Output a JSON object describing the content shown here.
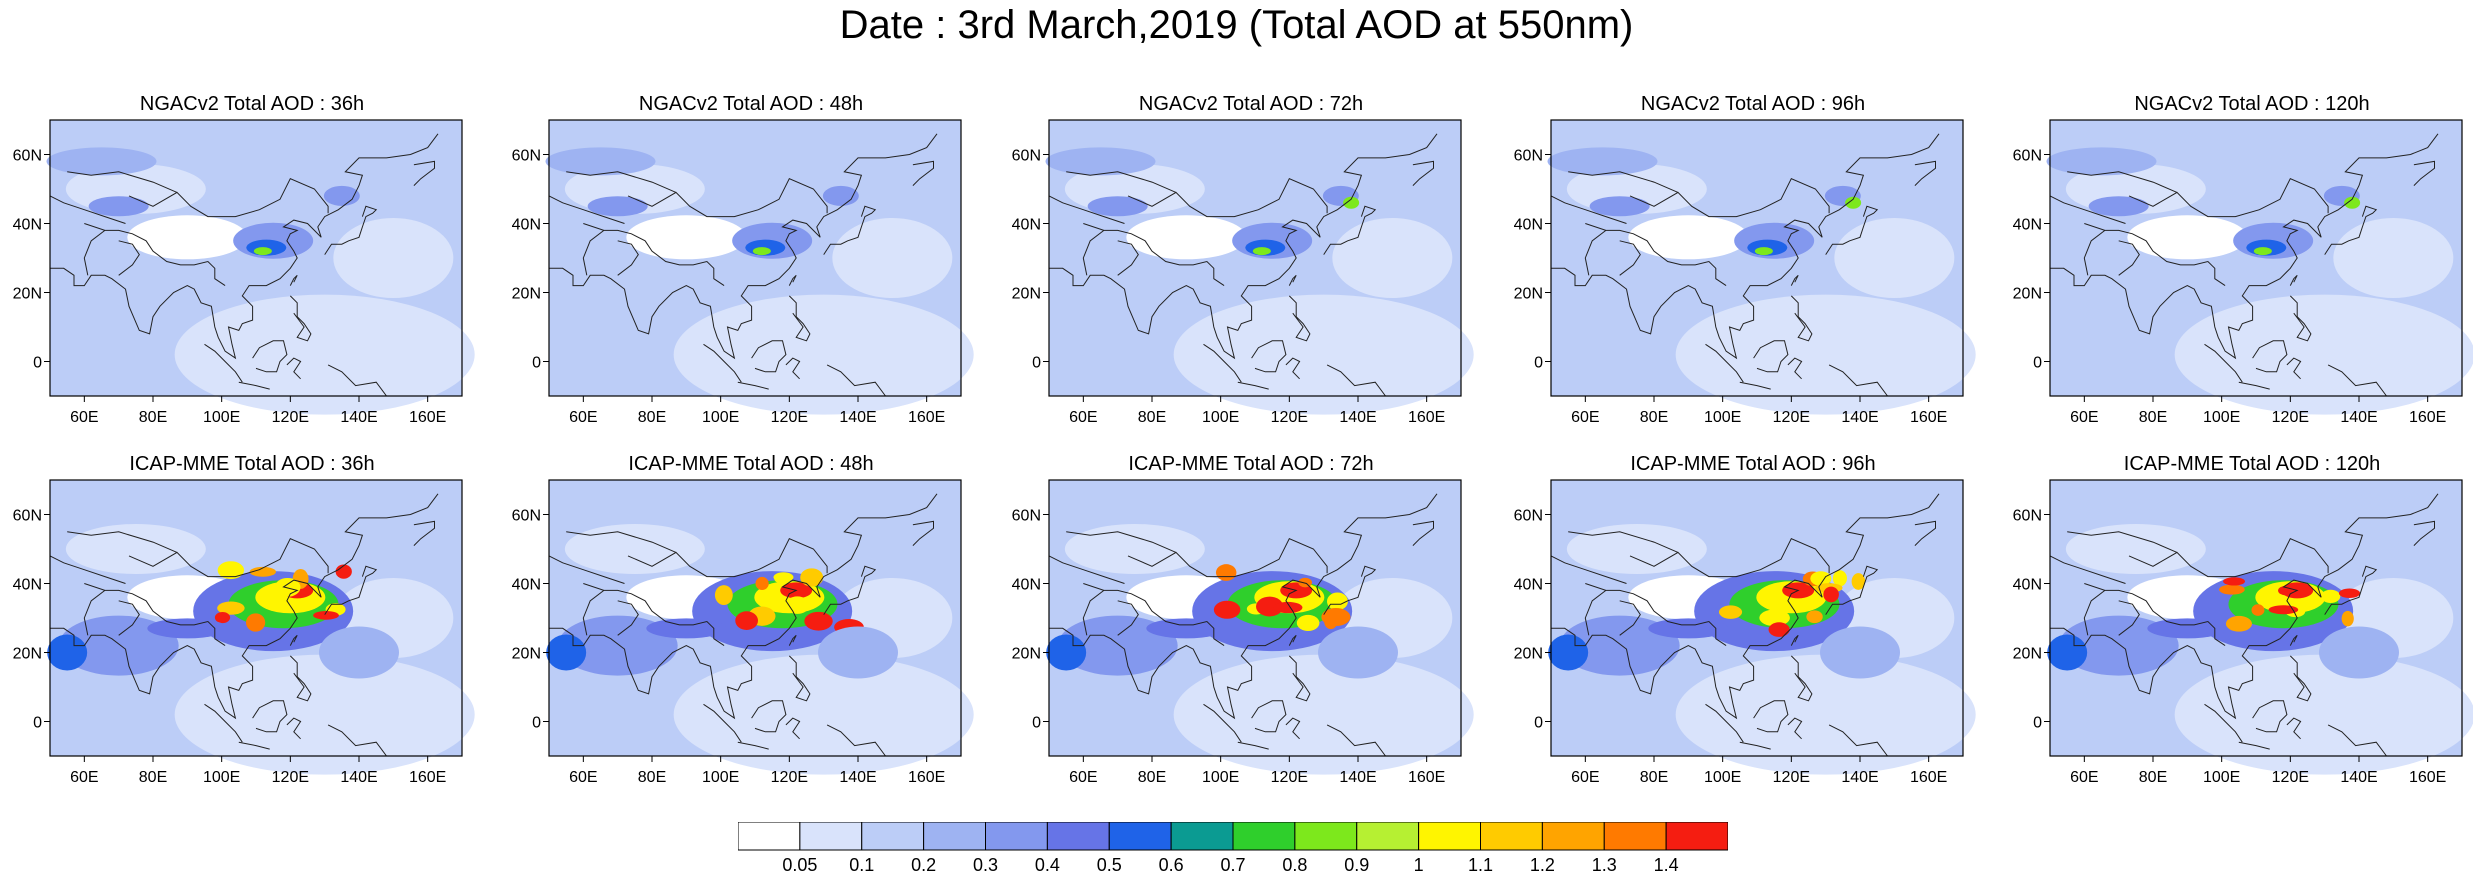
{
  "title": "Date : 3rd March,2019 (Total AOD at 550nm)",
  "panels": [
    {
      "title": "NGACv2 Total AOD : 36h"
    },
    {
      "title": "NGACv2 Total AOD : 48h"
    },
    {
      "title": "NGACv2 Total AOD : 72h"
    },
    {
      "title": "NGACv2 Total AOD : 96h"
    },
    {
      "title": "NGACv2 Total AOD : 120h"
    },
    {
      "title": "ICAP-MME Total AOD : 36h"
    },
    {
      "title": "ICAP-MME Total AOD : 48h"
    },
    {
      "title": "ICAP-MME Total AOD : 72h"
    },
    {
      "title": "ICAP-MME Total AOD : 96h"
    },
    {
      "title": "ICAP-MME Total AOD : 120h"
    }
  ],
  "map": {
    "lon_range": [
      50,
      170
    ],
    "lat_range": [
      -10,
      70
    ],
    "x_ticks": [
      "60E",
      "80E",
      "100E",
      "120E",
      "140E",
      "160E"
    ],
    "x_tick_values": [
      60,
      80,
      100,
      120,
      140,
      160
    ],
    "y_ticks": [
      "0",
      "20N",
      "40N",
      "60N"
    ],
    "y_tick_values": [
      0,
      20,
      40,
      60
    ]
  },
  "colorbar": {
    "labels": [
      "0.05",
      "0.1",
      "0.2",
      "0.3",
      "0.4",
      "0.5",
      "0.6",
      "0.7",
      "0.8",
      "0.9",
      "1",
      "1.1",
      "1.2",
      "1.3",
      "1.4"
    ],
    "colors": [
      "#ffffff",
      "#d9e3fb",
      "#bccdf7",
      "#9eb3f2",
      "#8398ee",
      "#6674e7",
      "#1f63e8",
      "#0b9b92",
      "#2fcf2c",
      "#7de81c",
      "#b6f032",
      "#fff500",
      "#ffcb00",
      "#ffa400",
      "#ff7a00",
      "#f51d11"
    ]
  }
}
